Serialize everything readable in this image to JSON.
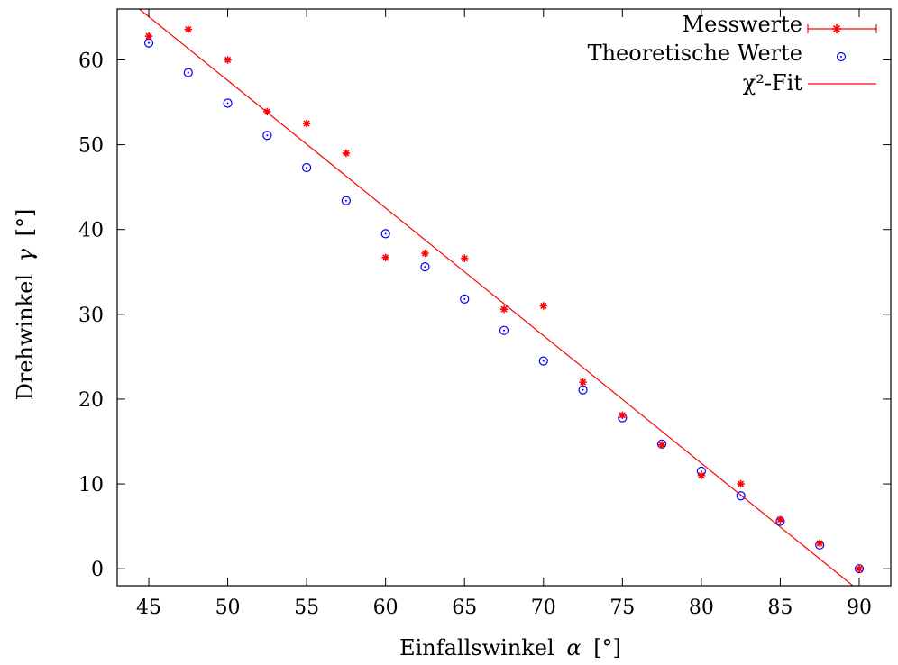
{
  "chart_data": {
    "type": "scatter",
    "xlabel": "Einfallswinkel",
    "xlabel_symbol": "α",
    "xlabel_unit": "[°]",
    "ylabel": "Drehwinkel",
    "ylabel_symbol": "γ",
    "ylabel_unit": "[°]",
    "xlim": [
      43,
      92
    ],
    "ylim": [
      -2,
      66
    ],
    "xticks": [
      45,
      50,
      55,
      60,
      65,
      70,
      75,
      80,
      85,
      90
    ],
    "yticks": [
      0,
      10,
      20,
      30,
      40,
      50,
      60
    ],
    "grid": false,
    "legend_position": "top-right",
    "series": [
      {
        "name": "Messwerte",
        "kind": "points-with-errorbars",
        "marker": "asterisk",
        "color": "#ff0000",
        "x": [
          45,
          47.5,
          50,
          52.5,
          55,
          57.5,
          60,
          62.5,
          65,
          67.5,
          70,
          72.5,
          75,
          77.5,
          80,
          82.5,
          85,
          87.5,
          90
        ],
        "y": [
          62.8,
          63.6,
          60.0,
          53.9,
          52.5,
          49.0,
          36.7,
          37.2,
          36.6,
          30.6,
          31.0,
          22.0,
          18.1,
          14.6,
          11.0,
          10.0,
          5.8,
          3.0,
          0.0
        ]
      },
      {
        "name": "Theoretische Werte",
        "kind": "points",
        "marker": "circle-dot",
        "color": "#0000ff",
        "x": [
          45,
          47.5,
          50,
          52.5,
          55,
          57.5,
          60,
          62.5,
          65,
          67.5,
          70,
          72.5,
          75,
          77.5,
          80,
          82.5,
          85,
          87.5,
          90
        ],
        "y": [
          62.0,
          58.5,
          54.9,
          51.1,
          47.3,
          43.4,
          39.5,
          35.6,
          31.8,
          28.1,
          24.5,
          21.1,
          17.8,
          14.7,
          11.5,
          8.6,
          5.6,
          2.8,
          0.0
        ]
      },
      {
        "name": "χ²-Fit",
        "kind": "line",
        "color": "#ff0000",
        "x": [
          44.4,
          89.6
        ],
        "y": [
          66.0,
          -2.0
        ]
      }
    ]
  }
}
